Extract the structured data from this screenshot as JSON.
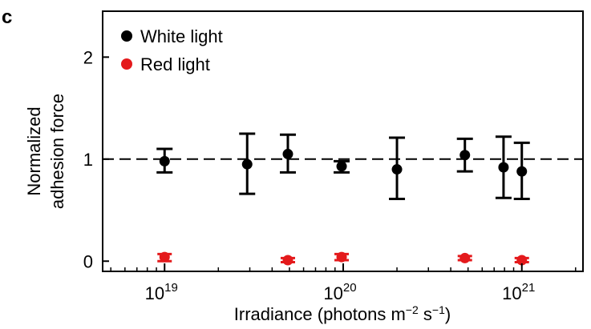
{
  "panel_label": "c",
  "chart_data": {
    "type": "scatter",
    "title": "",
    "xlabel": "Irradiance (photons m",
    "xlabel_sup1": "−2",
    "xlabel_mid": " s",
    "xlabel_sup2": "−1",
    "xlabel_end": ")",
    "ylabel_line1": "Normalized",
    "ylabel_line2": "adhesion force",
    "xscale": "log",
    "xlim": [
      4.5e+18,
      2.2e+21
    ],
    "ylim": [
      -0.1,
      2.45
    ],
    "x_ticks": [
      {
        "value": 1e+19,
        "base": "10",
        "exp": "19"
      },
      {
        "value": 1e+20,
        "base": "10",
        "exp": "20"
      },
      {
        "value": 1e+21,
        "base": "10",
        "exp": "21"
      }
    ],
    "y_ticks": [
      {
        "value": 0,
        "label": "0"
      },
      {
        "value": 1,
        "label": "1"
      },
      {
        "value": 2,
        "label": "2"
      }
    ],
    "reference_line": {
      "y": 1,
      "style": "dashed"
    },
    "legend_position": "top-left",
    "series": [
      {
        "name": "White light",
        "color": "#000000",
        "points": [
          {
            "x": 1e+19,
            "y": 0.98,
            "lo": 0.87,
            "hi": 1.1
          },
          {
            "x": 2.9e+19,
            "y": 0.95,
            "lo": 0.66,
            "hi": 1.25
          },
          {
            "x": 4.9e+19,
            "y": 1.05,
            "lo": 0.87,
            "hi": 1.24
          },
          {
            "x": 9.8e+19,
            "y": 0.93,
            "lo": 0.87,
            "hi": 0.98
          },
          {
            "x": 2e+20,
            "y": 0.9,
            "lo": 0.61,
            "hi": 1.21
          },
          {
            "x": 4.8e+20,
            "y": 1.04,
            "lo": 0.88,
            "hi": 1.2
          },
          {
            "x": 7.9e+20,
            "y": 0.92,
            "lo": 0.62,
            "hi": 1.22
          },
          {
            "x": 1e+21,
            "y": 0.88,
            "lo": 0.61,
            "hi": 1.16
          }
        ]
      },
      {
        "name": "Red light",
        "color": "#e41a1c",
        "points": [
          {
            "x": 1e+19,
            "y": 0.04,
            "lo": 0.0,
            "hi": 0.07
          },
          {
            "x": 4.9e+19,
            "y": 0.01,
            "lo": -0.01,
            "hi": 0.03
          },
          {
            "x": 9.8e+19,
            "y": 0.04,
            "lo": 0.01,
            "hi": 0.07
          },
          {
            "x": 4.8e+20,
            "y": 0.03,
            "lo": 0.01,
            "hi": 0.05
          },
          {
            "x": 1e+21,
            "y": 0.01,
            "lo": -0.01,
            "hi": 0.03
          }
        ]
      }
    ]
  }
}
